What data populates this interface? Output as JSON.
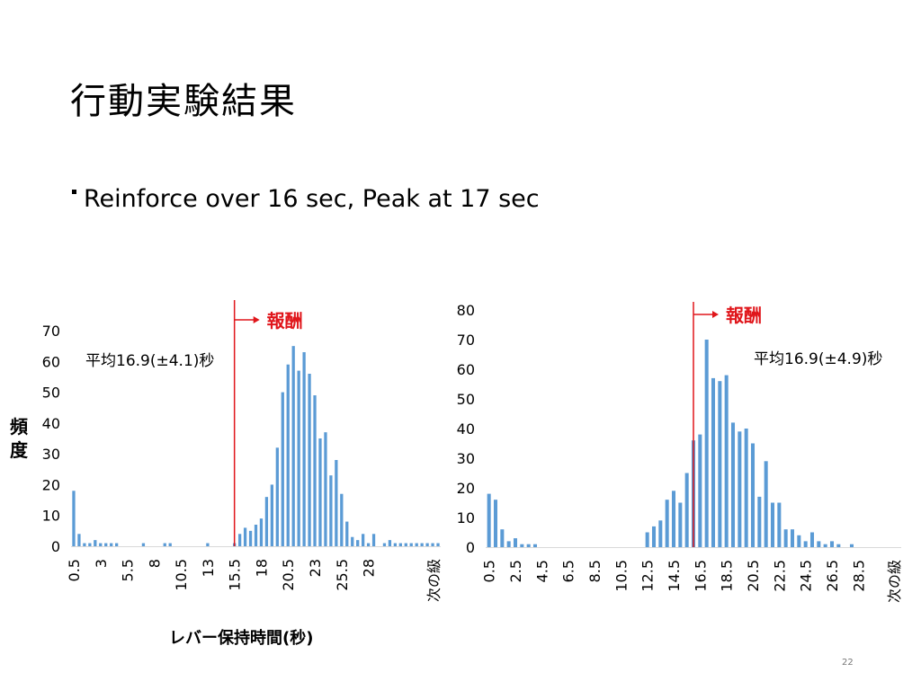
{
  "slide": {
    "title": "行動実験結果",
    "bullet": "Reinforce over 16 sec, Peak at 17 sec",
    "page_number": "22",
    "y_axis_label": "頻度",
    "x_axis_label": "レバー保持時間(秒)"
  },
  "colors": {
    "bar": "#5b9bd5",
    "marker": "#e0161b",
    "axis": "#d9d9d9"
  },
  "chart_data": [
    {
      "type": "bar",
      "title": "",
      "ylabel": "頻度",
      "xlabel": "レバー保持時間(秒)",
      "ylim": [
        0,
        70
      ],
      "yticks": [
        0,
        10,
        20,
        30,
        40,
        50,
        60,
        70
      ],
      "x_ticklabels": [
        "0.5",
        "3",
        "5.5",
        "8",
        "10.5",
        "13",
        "15.5",
        "18",
        "20.5",
        "23",
        "25.5",
        "28",
        "次の級"
      ],
      "x_start": 0.5,
      "x_step": 0.5,
      "values": [
        18,
        4,
        1,
        1,
        2,
        1,
        1,
        1,
        1,
        0,
        0,
        0,
        0,
        1,
        0,
        0,
        0,
        1,
        1,
        0,
        0,
        0,
        0,
        0,
        0,
        1,
        0,
        0,
        0,
        0,
        1,
        4,
        6,
        5,
        7,
        9,
        16,
        20,
        32,
        50,
        59,
        65,
        57,
        63,
        56,
        49,
        35,
        37,
        23,
        28,
        17,
        8,
        3,
        2,
        4,
        1,
        4,
        0,
        1,
        2,
        1,
        1,
        1,
        1,
        1,
        1,
        1,
        1,
        1
      ],
      "annotation": {
        "text": "平均16.9(±4.1)秒"
      },
      "reward_line": {
        "x": 15.5,
        "label": "報酬"
      }
    },
    {
      "type": "bar",
      "title": "",
      "ylabel": "",
      "xlabel": "",
      "ylim": [
        0,
        80
      ],
      "yticks": [
        0,
        10,
        20,
        30,
        40,
        50,
        60,
        70,
        80
      ],
      "x_ticklabels": [
        "0.5",
        "2.5",
        "4.5",
        "6.5",
        "8.5",
        "10.5",
        "12.5",
        "14.5",
        "16.5",
        "18.5",
        "20.5",
        "22.5",
        "24.5",
        "26.5",
        "28.5",
        "次の級"
      ],
      "x_start": 0.5,
      "x_step": 0.5,
      "values": [
        18,
        16,
        6,
        2,
        3,
        1,
        1,
        1,
        0,
        0,
        0,
        0,
        0,
        0,
        0,
        0,
        0,
        0,
        0,
        0,
        0,
        0,
        0,
        0,
        5,
        7,
        9,
        16,
        19,
        15,
        25,
        36,
        38,
        70,
        57,
        56,
        58,
        42,
        39,
        40,
        35,
        17,
        29,
        15,
        15,
        6,
        6,
        4,
        2,
        5,
        2,
        1,
        2,
        1,
        0,
        1,
        0,
        0,
        0,
        0,
        0,
        0,
        0
      ],
      "annotation": {
        "text": "平均16.9(±4.9)秒"
      },
      "reward_line": {
        "x": 16.0,
        "label": "報酬"
      }
    }
  ]
}
